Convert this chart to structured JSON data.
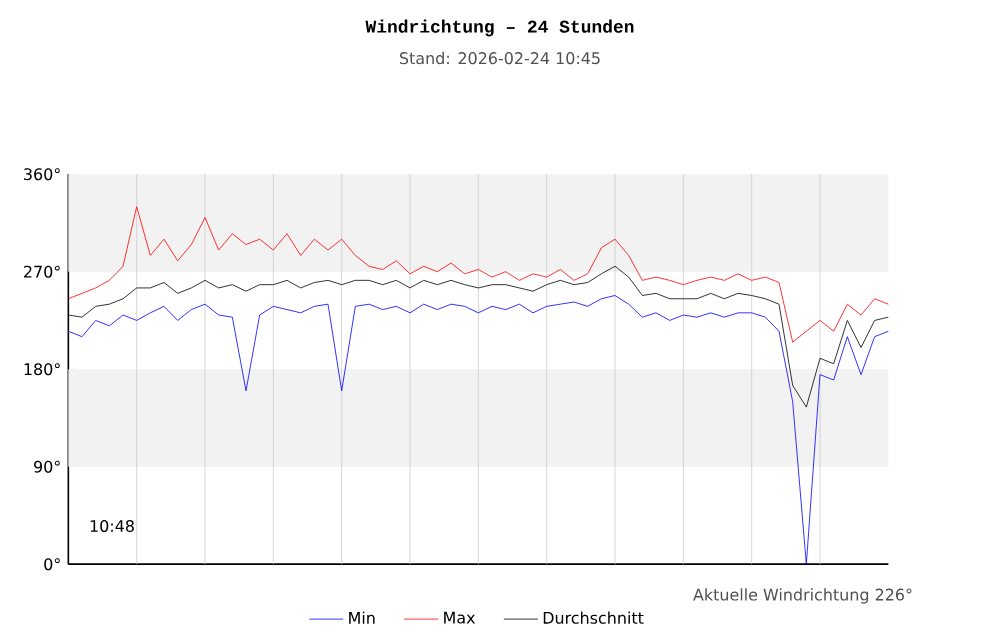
{
  "chart_data": {
    "type": "line",
    "title": "Windrichtung – 24 Stunden",
    "subtitle": "Stand: 2026-02-24 10:45",
    "annotations": [
      "10:48",
      "Aktuelle Windrichtung 226°"
    ],
    "categories": [
      null,
      null,
      null,
      null,
      null,
      null,
      null,
      null,
      null,
      null,
      null,
      null,
      null,
      null,
      null,
      null,
      null,
      null,
      null,
      null,
      null,
      null,
      null,
      null,
      null,
      null,
      null,
      null,
      null,
      null,
      null,
      null,
      null,
      null,
      null,
      null,
      null,
      null,
      null,
      null,
      null,
      null,
      null,
      null,
      null,
      null,
      null,
      null,
      null,
      null,
      null,
      null,
      null,
      null,
      null,
      null,
      null,
      null,
      null,
      null,
      null
    ],
    "series": [
      {
        "name": "Min",
        "color": "#0000ff",
        "values": [
          215,
          210,
          225,
          220,
          230,
          225,
          232,
          238,
          225,
          235,
          240,
          230,
          228,
          160,
          230,
          238,
          235,
          232,
          238,
          240,
          160,
          238,
          240,
          235,
          238,
          232,
          240,
          235,
          240,
          238,
          232,
          238,
          235,
          240,
          232,
          238,
          240,
          242,
          238,
          245,
          248,
          240,
          228,
          232,
          225,
          230,
          228,
          232,
          228,
          232,
          232,
          228,
          215,
          150,
          0,
          175,
          170,
          210,
          175,
          210,
          215
        ]
      },
      {
        "name": "Max",
        "color": "#ff0000",
        "values": [
          245,
          250,
          255,
          262,
          275,
          330,
          285,
          300,
          280,
          295,
          320,
          290,
          305,
          295,
          300,
          290,
          305,
          285,
          300,
          290,
          300,
          285,
          275,
          272,
          280,
          268,
          275,
          270,
          278,
          268,
          272,
          265,
          270,
          262,
          268,
          265,
          272,
          262,
          268,
          292,
          300,
          285,
          262,
          265,
          262,
          258,
          262,
          265,
          262,
          268,
          262,
          265,
          260,
          205,
          215,
          225,
          215,
          240,
          230,
          245,
          240
        ]
      },
      {
        "name": "Durchschnitt",
        "color": "#000000",
        "values": [
          230,
          228,
          238,
          240,
          245,
          255,
          255,
          260,
          250,
          255,
          262,
          255,
          258,
          252,
          258,
          258,
          262,
          255,
          260,
          262,
          258,
          262,
          262,
          258,
          262,
          255,
          262,
          258,
          262,
          258,
          255,
          258,
          258,
          255,
          252,
          258,
          262,
          258,
          260,
          268,
          275,
          265,
          248,
          250,
          245,
          245,
          245,
          250,
          245,
          250,
          248,
          245,
          240,
          165,
          145,
          190,
          185,
          225,
          200,
          225,
          228
        ]
      }
    ],
    "ylim": [
      0,
      360
    ],
    "yticks": [
      {
        "value": 0,
        "label": "0°"
      },
      {
        "value": 90,
        "label": "90°"
      },
      {
        "value": 180,
        "label": "180°"
      },
      {
        "value": 270,
        "label": "270°"
      },
      {
        "value": 360,
        "label": "360°"
      }
    ],
    "bands": [
      {
        "axis": "y",
        "from": 90,
        "to": 180,
        "color": "#f2f2f2"
      },
      {
        "axis": "y",
        "from": 270,
        "to": 360,
        "color": "#f2f2f2"
      }
    ],
    "grid": "x",
    "legend": "bottom",
    "marker": "none",
    "line_style": "solid"
  }
}
